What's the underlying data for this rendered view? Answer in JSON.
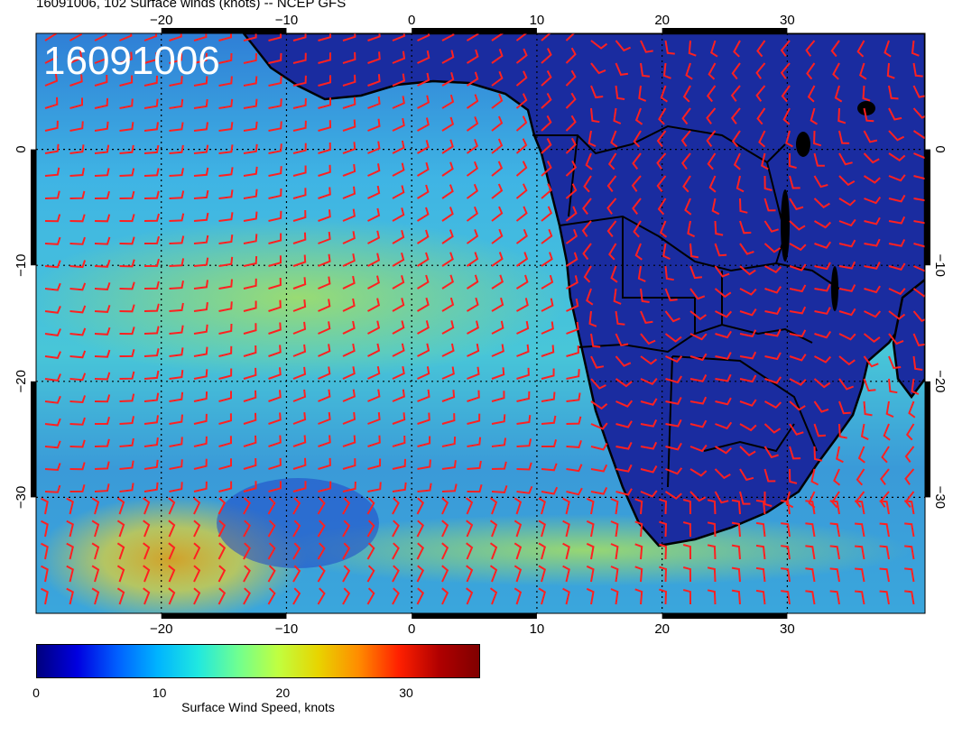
{
  "title": "16091006, 102 Surface winds (knots) -- NCEP GFS",
  "stamp": "16091006",
  "map": {
    "lon_range": [
      -30,
      41
    ],
    "lat_range": [
      -40,
      10
    ],
    "lon_ticks": [
      -20,
      -10,
      0,
      10,
      20,
      30
    ],
    "lat_ticks": [
      0,
      -10,
      -20,
      -30
    ],
    "grid": "dotted",
    "ocean_color": "#40b8e0",
    "land_color": "#1a2ca0",
    "barb_color": "#ff0000",
    "border_color": "#000000"
  },
  "colorbar": {
    "title": "Surface Wind Speed, knots",
    "ticks": [
      "0",
      "10",
      "20",
      "30"
    ],
    "tick_values": [
      0,
      10,
      20,
      30
    ],
    "max": 36,
    "colors": [
      "#00007f",
      "#0000e0",
      "#0060ff",
      "#00b4ff",
      "#20e8e0",
      "#70ff90",
      "#c0ff40",
      "#e8d400",
      "#ff8c00",
      "#ff2000",
      "#b00000",
      "#800000"
    ]
  }
}
